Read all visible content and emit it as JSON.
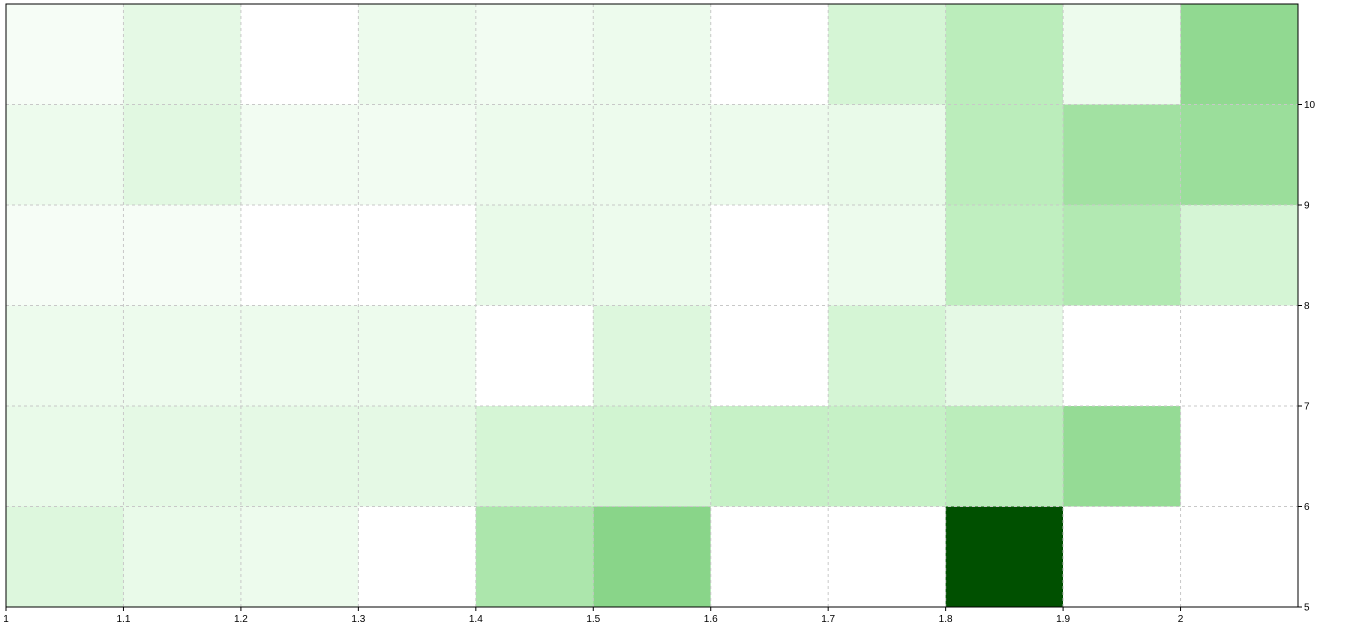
{
  "chart_data": {
    "type": "heatmap",
    "title": "",
    "xlabel": "",
    "ylabel": "",
    "x_edges": [
      1.0,
      1.1,
      1.2,
      1.3,
      1.4,
      1.5,
      1.6,
      1.7,
      1.8,
      1.9,
      2.0,
      2.1
    ],
    "y_edges": [
      5,
      6,
      7,
      8,
      9,
      10,
      11
    ],
    "xlim": [
      1.0,
      2.1
    ],
    "ylim": [
      5,
      11
    ],
    "x_ticks": [
      1,
      1.1,
      1.2,
      1.3,
      1.4,
      1.5,
      1.6,
      1.7,
      1.8,
      1.9,
      2
    ],
    "x_tick_labels": [
      "1",
      "1.1",
      "1.2",
      "1.3",
      "1.4",
      "1.5",
      "1.6",
      "1.7",
      "1.8",
      "1.9",
      "2"
    ],
    "y_ticks": [
      5,
      6,
      7,
      8,
      9,
      10
    ],
    "y_tick_labels": [
      "5",
      "6",
      "7",
      "8",
      "9",
      "10"
    ],
    "y_axis_position": "right",
    "grid": true,
    "colormap": {
      "low": "#ffffff",
      "high": "#005000",
      "empty": "#ffffff"
    },
    "value_range": [
      0,
      1
    ],
    "rows": [
      [
        0.08,
        0.05,
        0.04,
        null,
        0.25,
        0.42,
        null,
        null,
        1.0,
        null,
        null
      ],
      [
        0.05,
        0.06,
        0.06,
        0.06,
        0.1,
        0.11,
        0.14,
        0.14,
        0.18,
        0.36,
        null
      ],
      [
        0.04,
        0.04,
        0.04,
        0.04,
        null,
        0.08,
        null,
        0.1,
        0.06,
        null,
        null
      ],
      [
        0.02,
        0.02,
        null,
        null,
        0.05,
        0.04,
        null,
        0.04,
        0.16,
        0.22,
        0.1
      ],
      [
        0.04,
        0.07,
        0.03,
        0.03,
        0.04,
        0.04,
        0.04,
        0.05,
        0.18,
        0.3,
        0.33
      ],
      [
        0.02,
        0.06,
        null,
        0.04,
        0.03,
        0.04,
        null,
        0.1,
        0.18,
        0.04,
        0.38
      ]
    ]
  }
}
